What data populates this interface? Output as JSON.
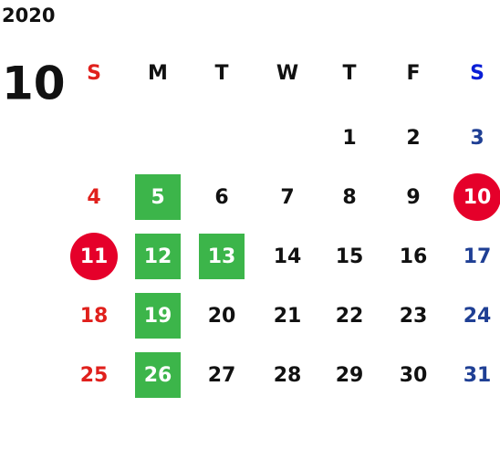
{
  "header": {
    "year": "2020",
    "month": "10"
  },
  "weekdays": [
    "S",
    "M",
    "T",
    "W",
    "T",
    "F",
    "S"
  ],
  "weeks": [
    [
      null,
      null,
      null,
      null,
      1,
      2,
      3
    ],
    [
      4,
      {
        "day": 5,
        "mark": "green"
      },
      6,
      7,
      8,
      9,
      {
        "day": 10,
        "mark": "red"
      }
    ],
    [
      {
        "day": 11,
        "mark": "red"
      },
      {
        "day": 12,
        "mark": "green"
      },
      {
        "day": 13,
        "mark": "green"
      },
      14,
      15,
      16,
      17
    ],
    [
      18,
      {
        "day": 19,
        "mark": "green"
      },
      20,
      21,
      22,
      23,
      24
    ],
    [
      25,
      {
        "day": 26,
        "mark": "green"
      },
      27,
      28,
      29,
      30,
      31
    ]
  ]
}
